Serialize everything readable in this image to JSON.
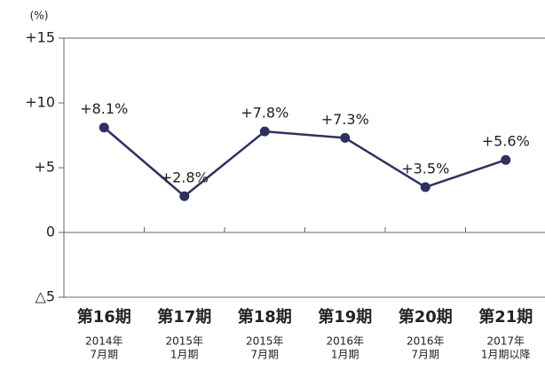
{
  "chart_data": {
    "type": "line",
    "y_label": "(%)",
    "categories": [
      [
        "第16期",
        "2014年",
        "7月期"
      ],
      [
        "第17期",
        "2015年",
        "1月期"
      ],
      [
        "第18期",
        "2015年",
        "7月期"
      ],
      [
        "第19期",
        "2016年",
        "1月期"
      ],
      [
        "第20期",
        "2016年",
        "7月期"
      ],
      [
        "第21期",
        "2017年",
        "1月期以降"
      ]
    ],
    "values": [
      8.1,
      2.8,
      7.8,
      7.3,
      3.5,
      5.6
    ],
    "value_labels": [
      "+8.1%",
      "+2.8%",
      "+7.8%",
      "+7.3%",
      "+3.5%",
      "+5.6%"
    ],
    "color": "#2e3162",
    "ylim": [
      -5,
      15
    ],
    "yticks": [
      {
        "value": -5,
        "label": "△5"
      },
      0,
      {
        "value": 5,
        "label": "+5"
      },
      {
        "value": 10,
        "label": "+10"
      },
      {
        "value": 15,
        "label": "+15"
      }
    ]
  }
}
